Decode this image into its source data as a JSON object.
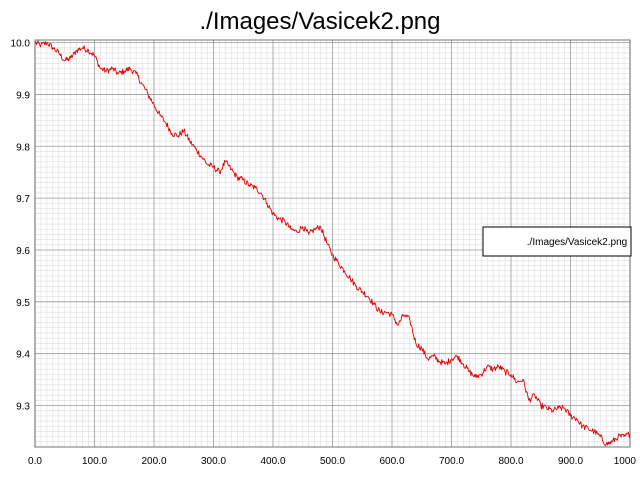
{
  "chart_data": {
    "type": "line",
    "title": "./Images/Vasicek2.png",
    "xlabel": "",
    "ylabel": "",
    "xlim": [
      0,
      1000
    ],
    "ylim": [
      9.22,
      10.005
    ],
    "grid": true,
    "legend_position": "right",
    "x_ticks": [
      0,
      100,
      200,
      300,
      400,
      500,
      600,
      700,
      800,
      900,
      1000
    ],
    "x_tick_labels": [
      "0.0",
      "100.0",
      "200.0",
      "300.0",
      "400.0",
      "500.0",
      "600.0",
      "700.0",
      "800.0",
      "900.0",
      "1000"
    ],
    "y_ticks": [
      10.0,
      9.9,
      9.8,
      9.7,
      9.6,
      9.5,
      9.4,
      9.3
    ],
    "y_tick_labels": [
      "10.0",
      "9.9",
      "9.8",
      "9.7",
      "9.6",
      "9.5",
      "9.4",
      "9.3"
    ],
    "series": [
      {
        "name": "./Images/Vasicek2.png",
        "color": "#e00000",
        "x": [
          0,
          10,
          20,
          30,
          40,
          50,
          60,
          70,
          80,
          90,
          100,
          110,
          120,
          130,
          140,
          150,
          160,
          170,
          180,
          190,
          200,
          210,
          220,
          230,
          240,
          250,
          260,
          270,
          280,
          290,
          300,
          310,
          320,
          330,
          340,
          350,
          360,
          370,
          380,
          390,
          400,
          410,
          420,
          430,
          440,
          450,
          460,
          470,
          480,
          490,
          500,
          510,
          520,
          530,
          540,
          550,
          560,
          570,
          580,
          590,
          600,
          610,
          620,
          630,
          640,
          650,
          660,
          670,
          680,
          690,
          700,
          710,
          720,
          730,
          740,
          750,
          760,
          770,
          780,
          790,
          800,
          810,
          820,
          830,
          840,
          850,
          860,
          870,
          880,
          890,
          900,
          910,
          920,
          930,
          940,
          950,
          960,
          970,
          980,
          990,
          1000
        ],
        "y": [
          10.0,
          9.995,
          10.0,
          9.99,
          9.98,
          9.965,
          9.97,
          9.985,
          9.99,
          9.985,
          9.975,
          9.95,
          9.945,
          9.95,
          9.94,
          9.945,
          9.95,
          9.94,
          9.92,
          9.9,
          9.88,
          9.86,
          9.845,
          9.825,
          9.82,
          9.83,
          9.81,
          9.795,
          9.78,
          9.765,
          9.76,
          9.75,
          9.77,
          9.755,
          9.74,
          9.735,
          9.725,
          9.72,
          9.71,
          9.69,
          9.67,
          9.66,
          9.655,
          9.64,
          9.635,
          9.645,
          9.63,
          9.64,
          9.645,
          9.615,
          9.59,
          9.575,
          9.56,
          9.545,
          9.53,
          9.52,
          9.51,
          9.495,
          9.48,
          9.48,
          9.475,
          9.455,
          9.475,
          9.465,
          9.42,
          9.41,
          9.39,
          9.395,
          9.385,
          9.38,
          9.39,
          9.395,
          9.38,
          9.365,
          9.355,
          9.36,
          9.375,
          9.37,
          9.375,
          9.365,
          9.36,
          9.345,
          9.35,
          9.31,
          9.32,
          9.3,
          9.295,
          9.29,
          9.295,
          9.295,
          9.28,
          9.275,
          9.26,
          9.255,
          9.25,
          9.24,
          9.225,
          9.23,
          9.24,
          9.24,
          9.245
        ]
      }
    ]
  }
}
